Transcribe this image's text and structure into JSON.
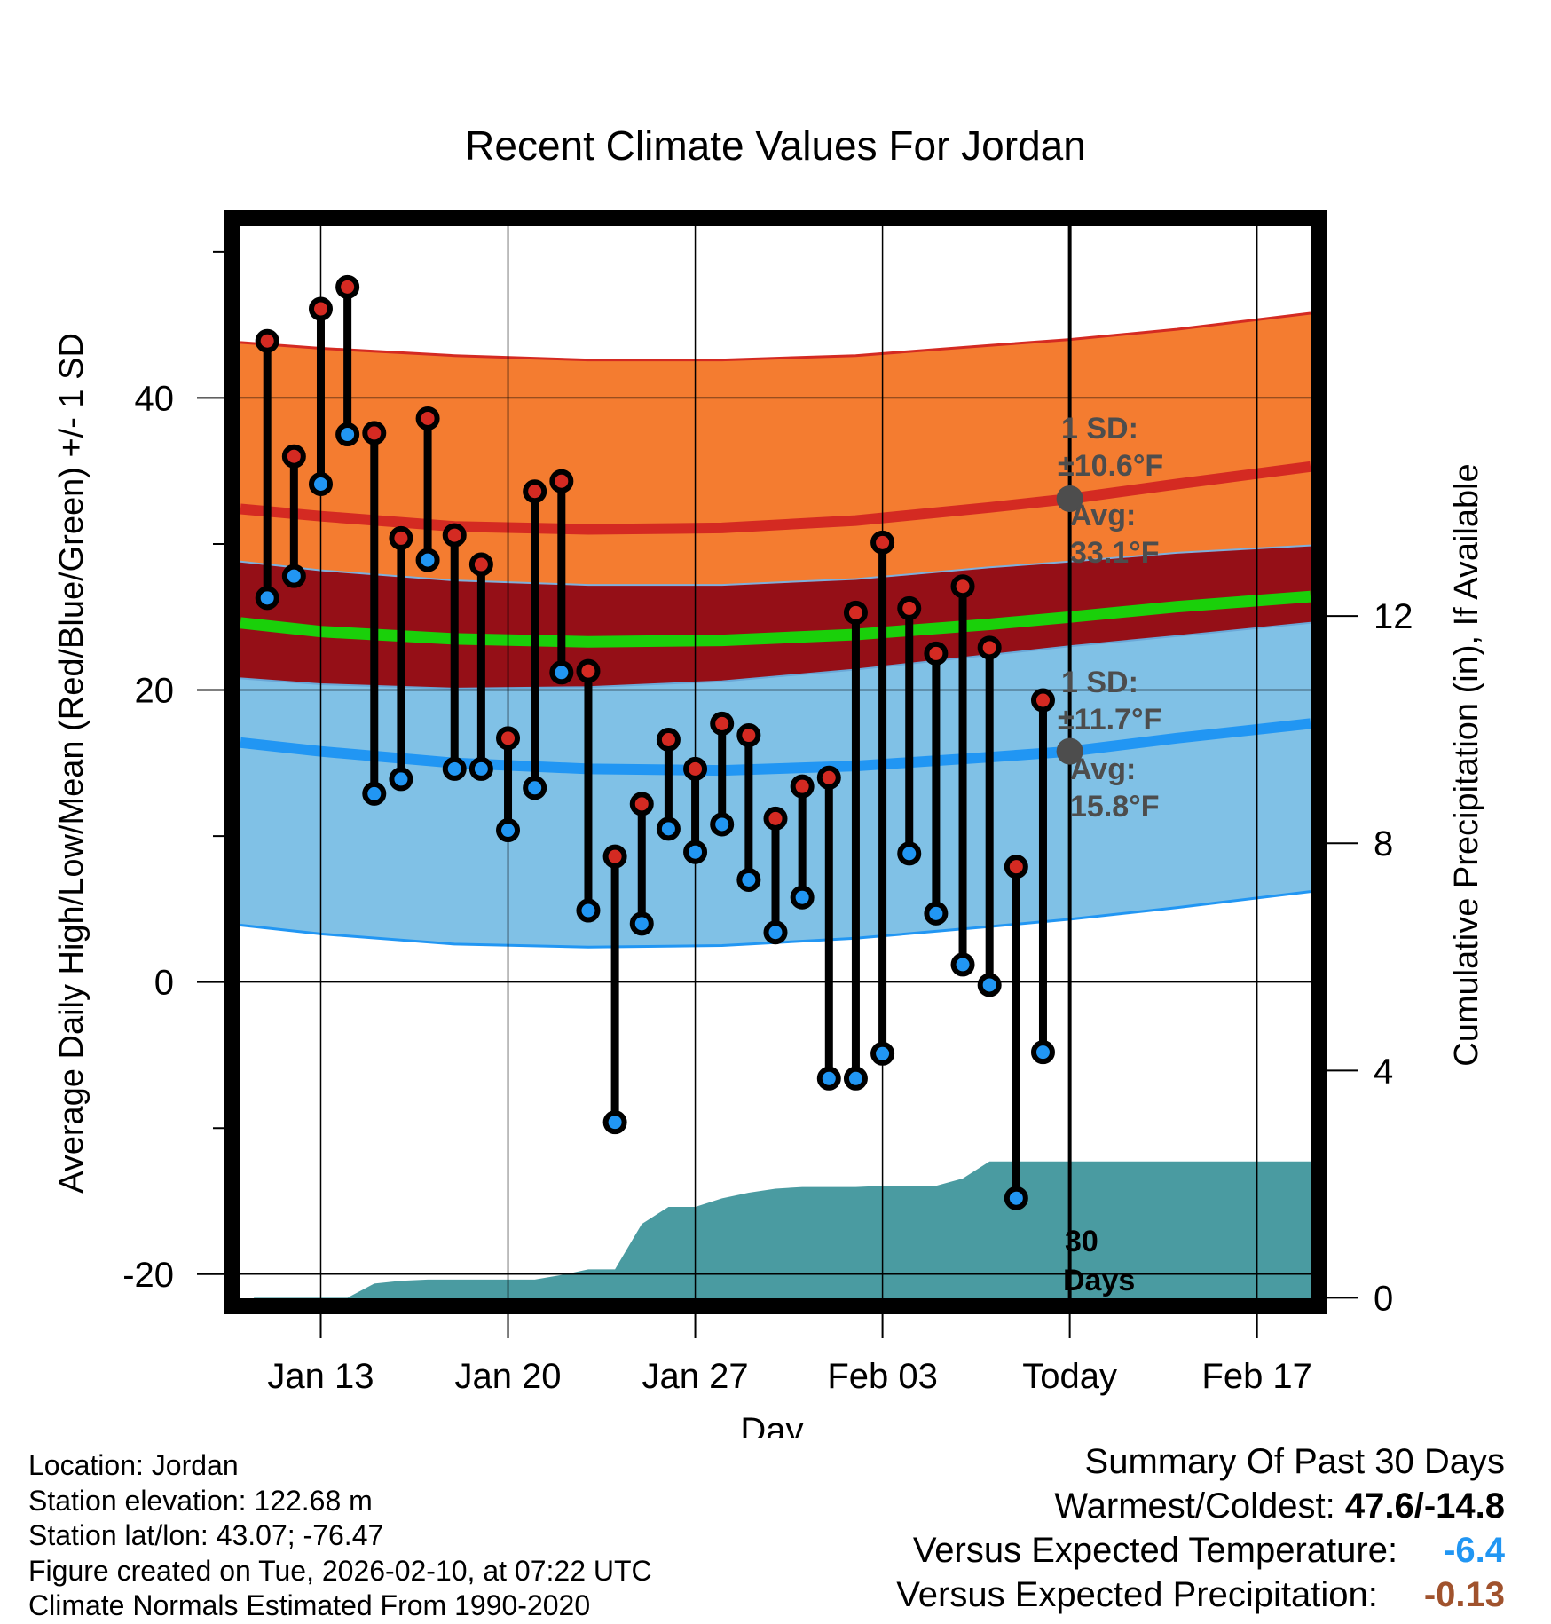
{
  "chart_data": {
    "type": "line",
    "title": "Recent Climate Values For Jordan",
    "xlabel": "Day",
    "ylabel": "Average Daily High/Low/Mean (Red/Blue/Green) +/- 1 SD",
    "y2label": "Cumulative Precipitation (in), If Available",
    "ylim": [
      -22.2,
      52.3
    ],
    "y2lim": [
      -0.15,
      19.0
    ],
    "xlim": [
      -3.3,
      37.3
    ],
    "x_tick_labels": [
      {
        "day": 0,
        "label": "Jan 13"
      },
      {
        "day": 7,
        "label": "Jan 20"
      },
      {
        "day": 14,
        "label": "Jan 27"
      },
      {
        "day": 21,
        "label": "Feb 03"
      },
      {
        "day": 28,
        "label": "Today"
      },
      {
        "day": 35,
        "label": "Feb 17"
      }
    ],
    "y_ticks": [
      {
        "value": -20,
        "label": "-20"
      },
      {
        "value": 0,
        "label": "0"
      },
      {
        "value": 20,
        "label": "20"
      },
      {
        "value": 40,
        "label": "40"
      }
    ],
    "y_minor_ticks": [
      -10,
      10,
      30,
      50
    ],
    "y2_ticks": [
      {
        "value": 0,
        "label": "0"
      },
      {
        "value": 4,
        "label": "4"
      },
      {
        "value": 8,
        "label": "8"
      },
      {
        "value": 12,
        "label": "12"
      }
    ],
    "days": [
      -2,
      -1,
      0,
      1,
      2,
      3,
      4,
      5,
      6,
      7,
      8,
      9,
      10,
      11,
      12,
      13,
      14,
      15,
      16,
      17,
      18,
      19,
      20,
      21,
      22,
      23,
      24,
      25,
      26,
      27
    ],
    "series": [
      {
        "name": "Daily High",
        "color": "#d42a22",
        "values": [
          43.9,
          36.0,
          46.1,
          47.6,
          37.6,
          30.4,
          38.6,
          30.6,
          28.6,
          16.7,
          33.6,
          34.3,
          21.3,
          8.6,
          12.2,
          16.6,
          14.6,
          17.7,
          16.9,
          11.2,
          13.4,
          14.0,
          25.3,
          30.1,
          25.6,
          22.5,
          27.1,
          22.9,
          7.9,
          19.3
        ]
      },
      {
        "name": "Daily Low",
        "color": "#2196f3",
        "values": [
          26.3,
          27.8,
          34.1,
          37.5,
          12.9,
          13.9,
          28.9,
          14.6,
          14.6,
          10.4,
          13.3,
          21.2,
          4.9,
          -9.6,
          4.0,
          10.5,
          8.9,
          10.8,
          7.0,
          3.4,
          5.8,
          -6.6,
          -6.6,
          -4.9,
          8.8,
          4.7,
          1.2,
          -0.2,
          -14.8,
          -4.8
        ]
      },
      {
        "name": "Cumulative Precipitation",
        "color": "#4a9ba1",
        "values": [
          0.0,
          0.0,
          0.0,
          0.0,
          0.25,
          0.3,
          0.32,
          0.32,
          0.32,
          0.32,
          0.32,
          0.4,
          0.5,
          0.5,
          1.3,
          1.6,
          1.6,
          1.75,
          1.85,
          1.92,
          1.95,
          1.95,
          1.95,
          1.97,
          1.97,
          1.97,
          2.1,
          2.4,
          2.4,
          2.4
        ]
      }
    ],
    "normals": {
      "days": [
        -3,
        0,
        5,
        10,
        15,
        20,
        25,
        28,
        32,
        37
      ],
      "high_mean": [
        32.4,
        31.9,
        31.2,
        31.0,
        31.1,
        31.6,
        32.5,
        33.1,
        34.1,
        35.3
      ],
      "high_upper": [
        43.8,
        43.4,
        42.9,
        42.6,
        42.6,
        42.9,
        43.6,
        44.0,
        44.7,
        45.8
      ],
      "high_lower": [
        28.8,
        28.2,
        27.5,
        27.2,
        27.2,
        27.6,
        28.4,
        28.8,
        29.4,
        29.9
      ],
      "low_mean": [
        16.4,
        15.8,
        15.0,
        14.6,
        14.5,
        14.8,
        15.4,
        15.8,
        16.7,
        17.7
      ],
      "low_upper": [
        20.8,
        20.4,
        20.1,
        20.2,
        20.6,
        21.4,
        22.4,
        23.0,
        23.7,
        24.6
      ],
      "low_lower": [
        3.9,
        3.3,
        2.6,
        2.4,
        2.5,
        3.0,
        3.8,
        4.3,
        5.1,
        6.2
      ],
      "mean_line": [
        24.6,
        24.0,
        23.5,
        23.3,
        23.4,
        23.8,
        24.5,
        25.0,
        25.7,
        26.4
      ]
    },
    "today_day": 28,
    "annotations": {
      "high_sd": "1 SD:",
      "high_sd_value": "±10.6°F",
      "high_avg": "Avg:",
      "high_avg_value": "33.1°F",
      "low_sd": "1 SD:",
      "low_sd_value": "±11.7°F",
      "low_avg": "Avg:",
      "low_avg_value": "15.8°F",
      "days_line1": "30",
      "days_line2": "Days"
    },
    "colors": {
      "high_band": "#f47c30",
      "high_line": "#d42a22",
      "overlap_band": "#950f17",
      "mean_line": "#1ad00a",
      "low_band": "#80c1e6",
      "low_line": "#2196f3",
      "precip": "#4a9ba1",
      "annotation": "#4d4d4d"
    }
  },
  "footer": {
    "location": "Location: Jordan",
    "elevation": "Station elevation: 122.68 m",
    "latlon": "Station lat/lon: 43.07; -76.47",
    "created": "Figure created on Tue, 2026-02-10, at 07:22 UTC",
    "normals": "Climate Normals Estimated From 1990-2020"
  },
  "summary": {
    "title": "Summary Of Past 30 Days",
    "warm_cold_label": "Warmest/Coldest: ",
    "warm_cold_value": "47.6/-14.8",
    "temp_label": "Versus Expected Temperature:",
    "temp_value": "-6.4",
    "temp_color": "#2196f3",
    "precip_label": "Versus Expected Precipitation:",
    "precip_value": "-0.13",
    "precip_color": "#a0522d"
  }
}
